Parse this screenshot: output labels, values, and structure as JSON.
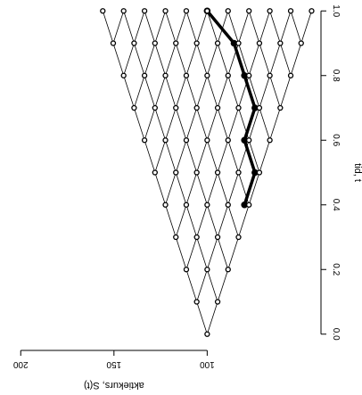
{
  "chart_data": {
    "type": "scatter",
    "title": "",
    "xlabel": "tid, t",
    "ylabel": "aktiekurs, S(t)",
    "x_ticks": [
      "0.0",
      "0.2",
      "0.4",
      "0.6",
      "0.8",
      "1.0"
    ],
    "y_ticks": [
      "100",
      "150",
      "200"
    ],
    "xlim": [
      -0.02,
      1.02
    ],
    "ylim": [
      47,
      205
    ],
    "tree": {
      "steps": [
        0,
        0.1,
        0.2,
        0.3,
        0.4,
        0.5,
        0.6,
        0.7,
        0.8,
        0.9,
        1.0
      ],
      "start_price": 100,
      "half_spread_per_step": 5.6
    },
    "highlighted_path": {
      "t": [
        0.4,
        0.5,
        0.6,
        0.7,
        0.8,
        0.9,
        1.0
      ],
      "S": [
        80.0,
        74.4,
        80.0,
        74.4,
        80.0,
        85.6,
        100.0
      ]
    },
    "colors": {
      "axis": "#000000",
      "node_fill": "#ffffff",
      "path": "#000000"
    }
  }
}
